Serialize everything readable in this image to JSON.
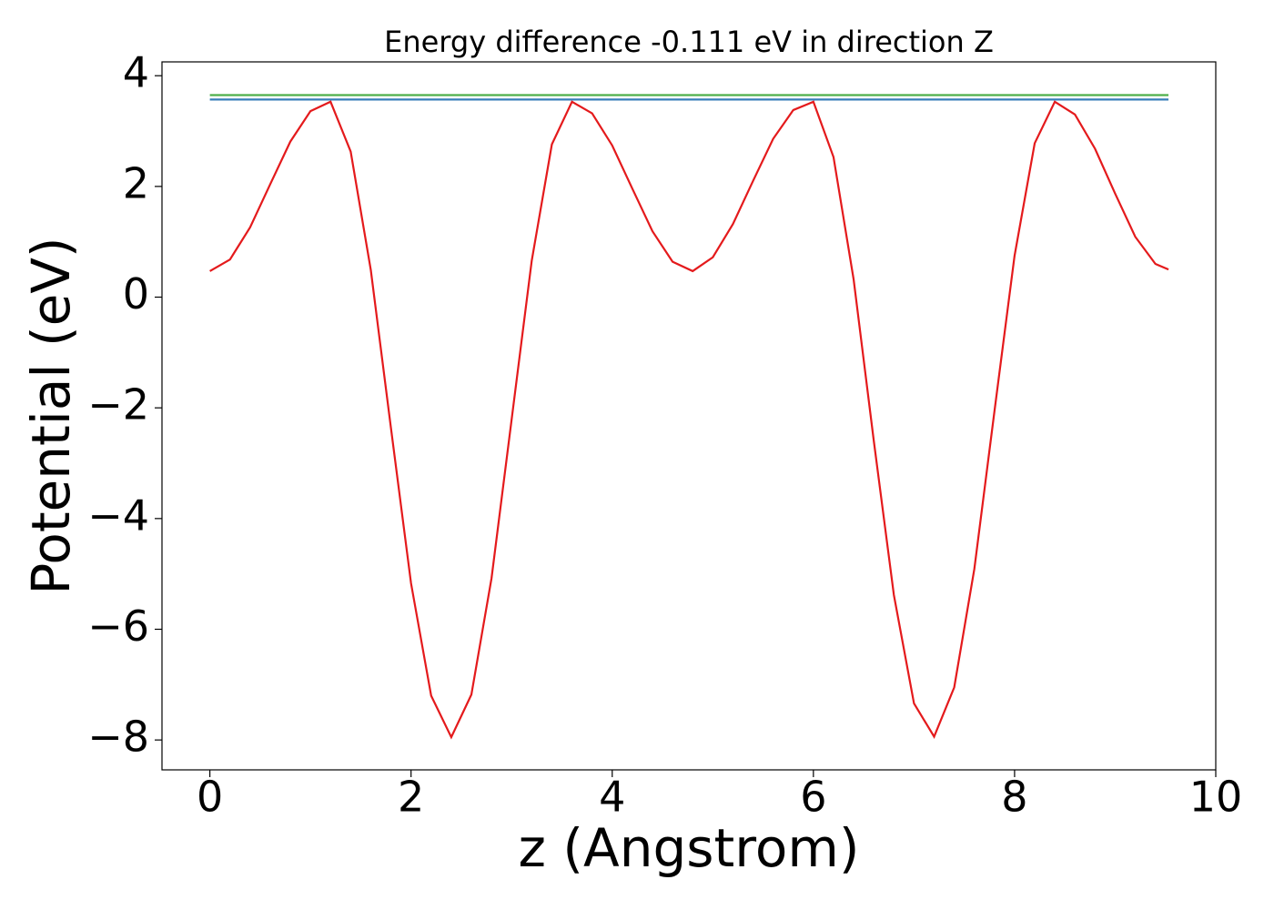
{
  "chart_data": {
    "type": "line",
    "title": "Energy difference -0.111 eV in direction Z",
    "xlabel": "z (Angstrom)",
    "ylabel": "Potential (eV)",
    "xlim": [
      -0.476,
      10.0
    ],
    "ylim": [
      -8.54,
      4.25
    ],
    "xticks": [
      0,
      2,
      4,
      6,
      8,
      10
    ],
    "yticks": [
      {
        "value": -8,
        "label": "−8"
      },
      {
        "value": -6,
        "label": "−6"
      },
      {
        "value": -4,
        "label": "−4"
      },
      {
        "value": -2,
        "label": "−2"
      },
      0,
      2,
      4
    ],
    "grid": false,
    "series": [
      {
        "color": "#e41a1c",
        "x": [
          0,
          0.2,
          0.4,
          0.6,
          0.8,
          1.0,
          1.2,
          1.4,
          1.6,
          1.8,
          2.0,
          2.2,
          2.4,
          2.6,
          2.8,
          3.0,
          3.2,
          3.4,
          3.6,
          3.8,
          4.0,
          4.2,
          4.4,
          4.6,
          4.8,
          5.0,
          5.2,
          5.4,
          5.6,
          5.8,
          6.0,
          6.2,
          6.4,
          6.6,
          6.8,
          7.0,
          7.2,
          7.4,
          7.6,
          7.8,
          8.0,
          8.2,
          8.4,
          8.6,
          8.8,
          9.0,
          9.2,
          9.4,
          9.53
        ],
        "values": [
          0.47,
          0.68,
          1.26,
          2.04,
          2.81,
          3.36,
          3.53,
          2.63,
          0.49,
          -2.36,
          -5.17,
          -7.2,
          -7.95,
          -7.18,
          -5.08,
          -2.21,
          0.66,
          2.76,
          3.53,
          3.32,
          2.74,
          1.96,
          1.19,
          0.64,
          0.47,
          0.72,
          1.32,
          2.1,
          2.86,
          3.38,
          3.53,
          2.53,
          0.32,
          -2.59,
          -5.38,
          -7.34,
          -7.94,
          -7.05,
          -4.91,
          -2.06,
          0.75,
          2.78,
          3.53,
          3.3,
          2.68,
          1.87,
          1.09,
          0.6,
          0.5
        ]
      },
      {
        "color": "#4daf4a",
        "x": [
          0,
          9.53
        ],
        "values": [
          3.65,
          3.65
        ]
      },
      {
        "color": "#377eb8",
        "x": [
          0,
          9.53
        ],
        "values": [
          3.57,
          3.57
        ]
      }
    ]
  }
}
